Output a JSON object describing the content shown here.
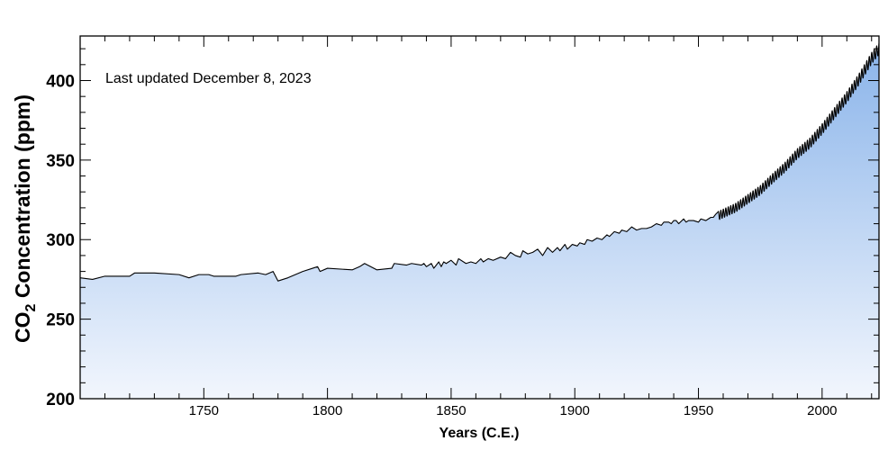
{
  "chart_data": {
    "type": "area",
    "annotation": "Last updated December 8, 2023",
    "xlabel": "Years (C.E.)",
    "ylabel_main": "CO",
    "ylabel_sub": "2",
    "ylabel_rest": " Concentration (ppm)",
    "xlim": [
      1700,
      2023
    ],
    "ylim": [
      200,
      428
    ],
    "xticks": [
      1750,
      1800,
      1850,
      1900,
      1950,
      2000
    ],
    "yticks": [
      200,
      250,
      300,
      350,
      400
    ],
    "xtick_labels": [
      "1750",
      "1800",
      "1850",
      "1900",
      "1950",
      "2000"
    ],
    "ytick_labels": [
      "200",
      "250",
      "300",
      "350",
      "400"
    ],
    "fill_gradient": [
      "#f2f6fd",
      "#8ab4ea"
    ],
    "line_color": "#000000",
    "series": [
      {
        "x": [
          1700,
          1705,
          1710,
          1720,
          1722,
          1730,
          1740,
          1744,
          1748,
          1752,
          1754,
          1756,
          1763,
          1765,
          1772,
          1775,
          1778,
          1779,
          1780,
          1784,
          1790,
          1794,
          1796,
          1797,
          1800,
          1810,
          1813,
          1815,
          1820,
          1826,
          1827,
          1832,
          1834,
          1838,
          1839,
          1840,
          1842,
          1843,
          1845,
          1846,
          1847,
          1848,
          1850,
          1852,
          1853,
          1856,
          1858,
          1860,
          1862,
          1863,
          1865,
          1867,
          1870,
          1872,
          1874,
          1876,
          1878,
          1879,
          1881,
          1883,
          1885,
          1887,
          1889,
          1891,
          1893,
          1894,
          1896,
          1897,
          1899,
          1901,
          1902,
          1904,
          1905,
          1907,
          1909,
          1911,
          1913,
          1914,
          1916,
          1918,
          1919,
          1921,
          1923,
          1925,
          1927,
          1929,
          1931,
          1933,
          1935,
          1936,
          1938,
          1939,
          1940,
          1941,
          1942,
          1944,
          1945,
          1946,
          1947,
          1948,
          1950,
          1951,
          1953,
          1954,
          1955,
          1956,
          1957
        ],
        "y": [
          276,
          275,
          277,
          277,
          279,
          279,
          278,
          276,
          278,
          278,
          277,
          277,
          277,
          278,
          279,
          278,
          280,
          277,
          274,
          276,
          280,
          282,
          283,
          280,
          282,
          281,
          283,
          285,
          281,
          282,
          285,
          284,
          285,
          284,
          285,
          283,
          285,
          282,
          286,
          283,
          286,
          285,
          287,
          284,
          288,
          285,
          286,
          285,
          288,
          286,
          288,
          287,
          289,
          288,
          292,
          290,
          289,
          293,
          291,
          292,
          294,
          290,
          295,
          292,
          295,
          293,
          297,
          294,
          297,
          296,
          298,
          297,
          300,
          299,
          301,
          300,
          303,
          302,
          305,
          304,
          306,
          305,
          308,
          306,
          307,
          307,
          308,
          310,
          309,
          311,
          311,
          310,
          312,
          312,
          310,
          313,
          311,
          312,
          312,
          312,
          311,
          313,
          312,
          313,
          314,
          314,
          316
        ]
      }
    ],
    "seasonal": {
      "start_year": 1958,
      "end_year": 2023,
      "anchors_x": [
        1958,
        1965,
        1970,
        1975,
        1980,
        1985,
        1990,
        1995,
        2000,
        2005,
        2010,
        2015,
        2020,
        2023
      ],
      "anchors_y": [
        315,
        320,
        325.5,
        331,
        338.5,
        345.5,
        354,
        360.5,
        369.5,
        379.5,
        389.5,
        401,
        414,
        420
      ],
      "amplitude": 3.2
    }
  }
}
